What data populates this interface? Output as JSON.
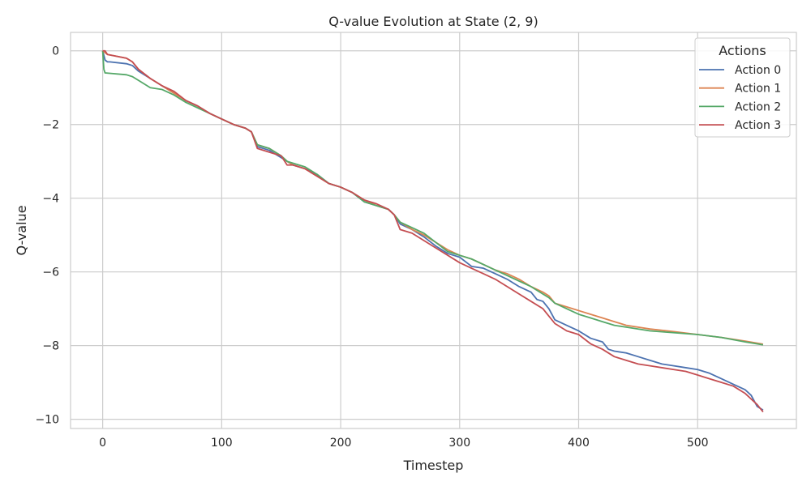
{
  "chart_data": {
    "type": "line",
    "title": "Q-value Evolution at State (2, 9)",
    "xlabel": "Timestep",
    "ylabel": "Q-value",
    "xlim": [
      -27,
      583
    ],
    "ylim": [
      -10.25,
      0.5
    ],
    "xticks": [
      0,
      100,
      200,
      300,
      400,
      500
    ],
    "yticks": [
      0,
      -2,
      -4,
      -6,
      -8,
      -10
    ],
    "xtick_labels": [
      "0",
      "100",
      "200",
      "300",
      "400",
      "500"
    ],
    "ytick_labels": [
      "0",
      "−2",
      "−4",
      "−6",
      "−8",
      "−10"
    ],
    "grid": true,
    "legend": {
      "title": "Actions",
      "position": "top-right"
    },
    "series": [
      {
        "name": "Action 0",
        "color": "#4c72b0",
        "x": [
          0,
          2,
          4,
          6,
          20,
          25,
          30,
          40,
          50,
          60,
          70,
          80,
          90,
          100,
          110,
          120,
          125,
          130,
          140,
          150,
          155,
          160,
          170,
          180,
          190,
          200,
          210,
          220,
          230,
          240,
          245,
          250,
          260,
          270,
          280,
          290,
          300,
          310,
          320,
          330,
          340,
          350,
          360,
          365,
          370,
          375,
          380,
          390,
          400,
          410,
          420,
          425,
          430,
          440,
          450,
          460,
          470,
          480,
          490,
          500,
          510,
          520,
          530,
          540,
          545,
          550,
          555
        ],
        "y": [
          0,
          -0.25,
          -0.3,
          -0.3,
          -0.35,
          -0.4,
          -0.55,
          -0.75,
          -0.95,
          -1.15,
          -1.35,
          -1.5,
          -1.7,
          -1.85,
          -2.0,
          -2.1,
          -2.2,
          -2.6,
          -2.7,
          -2.9,
          -3.0,
          -3.1,
          -3.2,
          -3.35,
          -3.6,
          -3.7,
          -3.85,
          -4.1,
          -4.2,
          -4.3,
          -4.45,
          -4.7,
          -4.85,
          -5.05,
          -5.3,
          -5.5,
          -5.6,
          -5.85,
          -5.9,
          -6.05,
          -6.2,
          -6.4,
          -6.55,
          -6.75,
          -6.8,
          -7.0,
          -7.3,
          -7.45,
          -7.6,
          -7.8,
          -7.9,
          -8.1,
          -8.15,
          -8.2,
          -8.3,
          -8.4,
          -8.5,
          -8.55,
          -8.6,
          -8.65,
          -8.75,
          -8.9,
          -9.05,
          -9.2,
          -9.35,
          -9.65,
          -9.75
        ]
      },
      {
        "name": "Action 1",
        "color": "#dd8452",
        "x": [
          0,
          2,
          4,
          20,
          25,
          30,
          40,
          50,
          60,
          70,
          80,
          90,
          100,
          110,
          120,
          125,
          130,
          140,
          150,
          155,
          160,
          170,
          180,
          190,
          200,
          210,
          220,
          230,
          240,
          245,
          250,
          260,
          270,
          280,
          290,
          300,
          310,
          320,
          330,
          340,
          350,
          360,
          370,
          375,
          380,
          390,
          400,
          410,
          420,
          430,
          440,
          460,
          480,
          500,
          520,
          540,
          555
        ],
        "y": [
          0,
          -0.05,
          -0.1,
          -0.2,
          -0.3,
          -0.5,
          -0.75,
          -0.95,
          -1.15,
          -1.35,
          -1.5,
          -1.7,
          -1.85,
          -2.0,
          -2.1,
          -2.2,
          -2.55,
          -2.65,
          -2.85,
          -3.0,
          -3.1,
          -3.2,
          -3.4,
          -3.6,
          -3.7,
          -3.85,
          -4.05,
          -4.2,
          -4.3,
          -4.45,
          -4.65,
          -4.85,
          -5.0,
          -5.2,
          -5.4,
          -5.55,
          -5.65,
          -5.8,
          -5.95,
          -6.05,
          -6.2,
          -6.4,
          -6.55,
          -6.65,
          -6.85,
          -6.95,
          -7.05,
          -7.15,
          -7.25,
          -7.35,
          -7.45,
          -7.55,
          -7.62,
          -7.7,
          -7.78,
          -7.88,
          -7.96
        ]
      },
      {
        "name": "Action 2",
        "color": "#55a868",
        "x": [
          0,
          1,
          2,
          20,
          25,
          30,
          40,
          50,
          60,
          70,
          80,
          90,
          100,
          110,
          120,
          125,
          130,
          140,
          150,
          155,
          160,
          170,
          180,
          190,
          200,
          210,
          220,
          230,
          240,
          245,
          250,
          260,
          270,
          280,
          290,
          300,
          310,
          320,
          330,
          340,
          350,
          360,
          370,
          375,
          380,
          390,
          400,
          410,
          420,
          430,
          440,
          460,
          480,
          500,
          520,
          540,
          555
        ],
        "y": [
          0,
          -0.5,
          -0.6,
          -0.65,
          -0.7,
          -0.8,
          -1.0,
          -1.05,
          -1.2,
          -1.4,
          -1.55,
          -1.7,
          -1.85,
          -2.0,
          -2.1,
          -2.2,
          -2.55,
          -2.65,
          -2.85,
          -3.0,
          -3.05,
          -3.15,
          -3.35,
          -3.6,
          -3.7,
          -3.85,
          -4.1,
          -4.2,
          -4.3,
          -4.45,
          -4.65,
          -4.8,
          -4.95,
          -5.2,
          -5.45,
          -5.55,
          -5.65,
          -5.8,
          -5.95,
          -6.1,
          -6.25,
          -6.4,
          -6.6,
          -6.7,
          -6.85,
          -7.0,
          -7.15,
          -7.25,
          -7.35,
          -7.45,
          -7.5,
          -7.6,
          -7.65,
          -7.7,
          -7.78,
          -7.9,
          -7.98
        ]
      },
      {
        "name": "Action 3",
        "color": "#c44e52",
        "x": [
          0,
          2,
          4,
          20,
          25,
          30,
          40,
          50,
          60,
          70,
          80,
          90,
          100,
          110,
          120,
          125,
          130,
          140,
          150,
          155,
          160,
          170,
          180,
          190,
          200,
          210,
          220,
          230,
          240,
          245,
          250,
          260,
          270,
          280,
          290,
          300,
          310,
          320,
          330,
          340,
          350,
          360,
          370,
          375,
          380,
          390,
          400,
          410,
          420,
          430,
          440,
          450,
          460,
          470,
          480,
          490,
          500,
          510,
          520,
          530,
          540,
          550,
          555
        ],
        "y": [
          0,
          0,
          -0.1,
          -0.2,
          -0.3,
          -0.5,
          -0.75,
          -0.95,
          -1.1,
          -1.35,
          -1.5,
          -1.7,
          -1.85,
          -2.0,
          -2.1,
          -2.2,
          -2.65,
          -2.75,
          -2.85,
          -3.1,
          -3.1,
          -3.2,
          -3.4,
          -3.6,
          -3.7,
          -3.85,
          -4.05,
          -4.15,
          -4.3,
          -4.45,
          -4.85,
          -4.95,
          -5.15,
          -5.35,
          -5.55,
          -5.75,
          -5.9,
          -6.05,
          -6.2,
          -6.4,
          -6.6,
          -6.8,
          -7.0,
          -7.2,
          -7.4,
          -7.6,
          -7.7,
          -7.95,
          -8.1,
          -8.3,
          -8.4,
          -8.5,
          -8.55,
          -8.6,
          -8.65,
          -8.7,
          -8.8,
          -8.9,
          -9.0,
          -9.1,
          -9.3,
          -9.6,
          -9.8
        ]
      }
    ]
  }
}
